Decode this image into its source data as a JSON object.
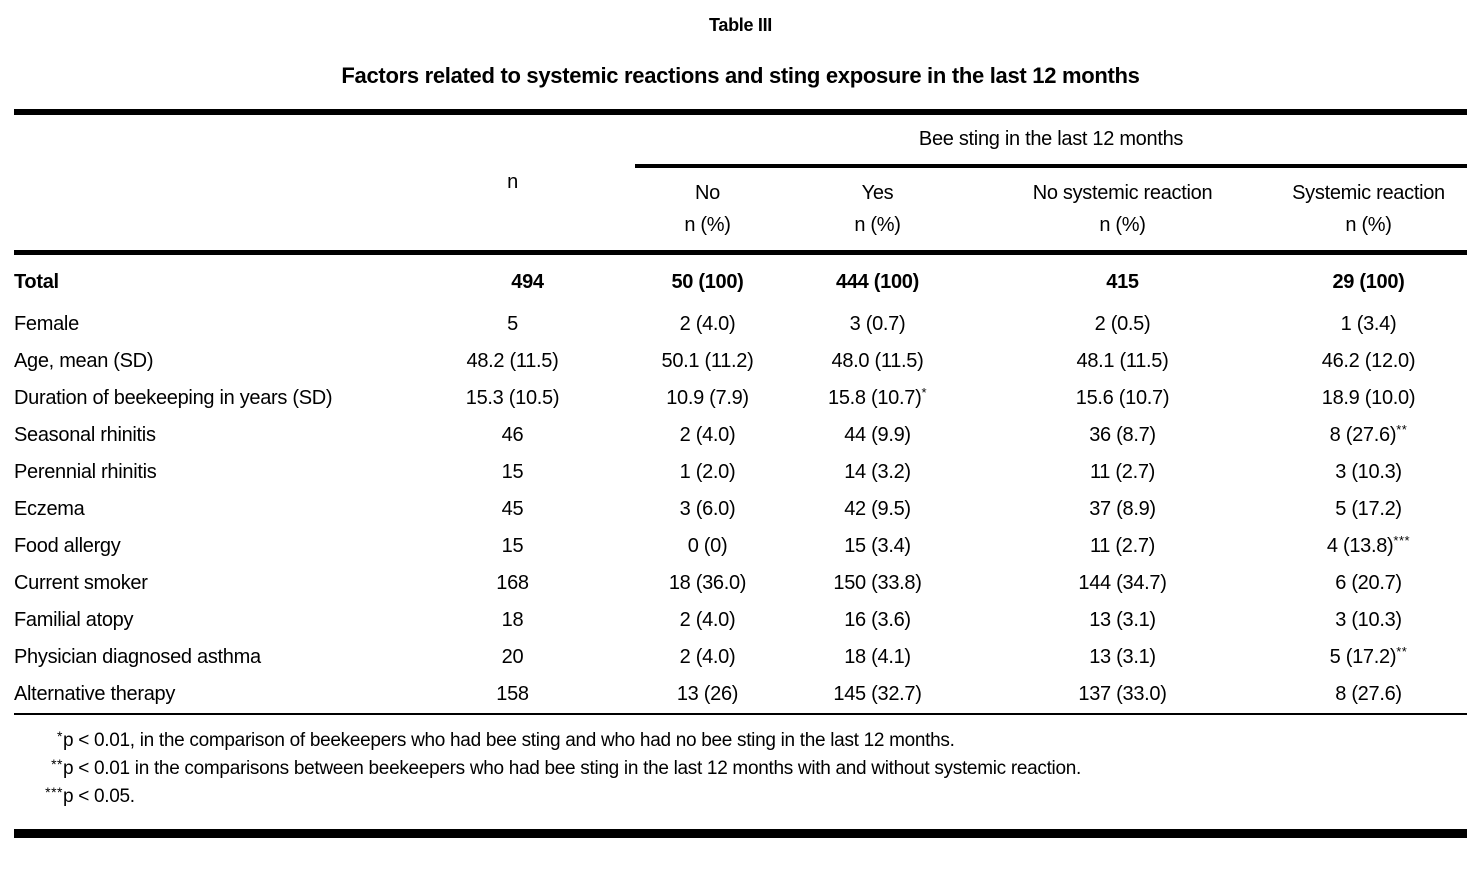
{
  "colors": {
    "ink": "#000000",
    "background": "#ffffff"
  },
  "title": "Table III",
  "subtitle": "Factors related to systemic reactions and sting exposure in the last 12 months",
  "table": {
    "group_header": "Bee sting in the last 12 months",
    "col_n": "n",
    "columns": [
      {
        "line1": "No",
        "line2": "n (%)"
      },
      {
        "line1": "Yes",
        "line2": "n (%)"
      },
      {
        "line1": "No systemic reaction",
        "line2": "n (%)"
      },
      {
        "line1": "Systemic reaction",
        "line2": "n (%)"
      }
    ],
    "rows": [
      {
        "label": "Total",
        "bold": true,
        "cells": [
          "494",
          "50 (100)",
          "444 (100)",
          "415",
          "29 (100)"
        ]
      },
      {
        "label": "Female",
        "bold": false,
        "cells": [
          "5",
          "2 (4.0)",
          "3 (0.7)",
          "2 (0.5)",
          "1 (3.4)"
        ]
      },
      {
        "label": "Age, mean (SD)",
        "bold": false,
        "cells": [
          "48.2 (11.5)",
          "50.1 (11.2)",
          "48.0 (11.5)",
          "48.1 (11.5)",
          "46.2 (12.0)"
        ]
      },
      {
        "label": "Duration of beekeeping in years (SD)",
        "bold": false,
        "cells": [
          "15.3 (10.5)",
          "10.9 (7.9)",
          "15.8 (10.7)*",
          "15.6 (10.7)",
          "18.9 (10.0)"
        ]
      },
      {
        "label": "Seasonal rhinitis",
        "bold": false,
        "cells": [
          "46",
          "2 (4.0)",
          "44 (9.9)",
          "36 (8.7)",
          "8 (27.6)**"
        ]
      },
      {
        "label": "Perennial rhinitis",
        "bold": false,
        "cells": [
          "15",
          "1 (2.0)",
          "14 (3.2)",
          "11 (2.7)",
          "3 (10.3)"
        ]
      },
      {
        "label": "Eczema",
        "bold": false,
        "cells": [
          "45",
          "3 (6.0)",
          "42 (9.5)",
          "37 (8.9)",
          "5 (17.2)"
        ]
      },
      {
        "label": "Food allergy",
        "bold": false,
        "cells": [
          "15",
          "0 (0)",
          "15 (3.4)",
          "11 (2.7)",
          "4 (13.8)***"
        ]
      },
      {
        "label": "Current smoker",
        "bold": false,
        "cells": [
          "168",
          "18 (36.0)",
          "150 (33.8)",
          "144 (34.7)",
          "6 (20.7)"
        ]
      },
      {
        "label": "Familial atopy",
        "bold": false,
        "cells": [
          "18",
          "2 (4.0)",
          "16 (3.6)",
          "13 (3.1)",
          "3 (10.3)"
        ]
      },
      {
        "label": "Physician diagnosed asthma",
        "bold": false,
        "cells": [
          "20",
          "2 (4.0)",
          "18 (4.1)",
          "13 (3.1)",
          "5 (17.2)**"
        ]
      },
      {
        "label": "Alternative therapy",
        "bold": false,
        "cells": [
          "158",
          "13 (26)",
          "145 (32.7)",
          "137 (33.0)",
          "8 (27.6)"
        ]
      }
    ]
  },
  "footnotes": [
    {
      "marker": "*",
      "text": "p < 0.01, in the comparison of beekeepers who had bee sting and who had no bee sting in the last 12 months."
    },
    {
      "marker": "**",
      "text": "p < 0.01 in the comparisons between beekeepers who had bee sting in the last 12 months with and without systemic reaction."
    },
    {
      "marker": "***",
      "text": "p < 0.05."
    }
  ]
}
